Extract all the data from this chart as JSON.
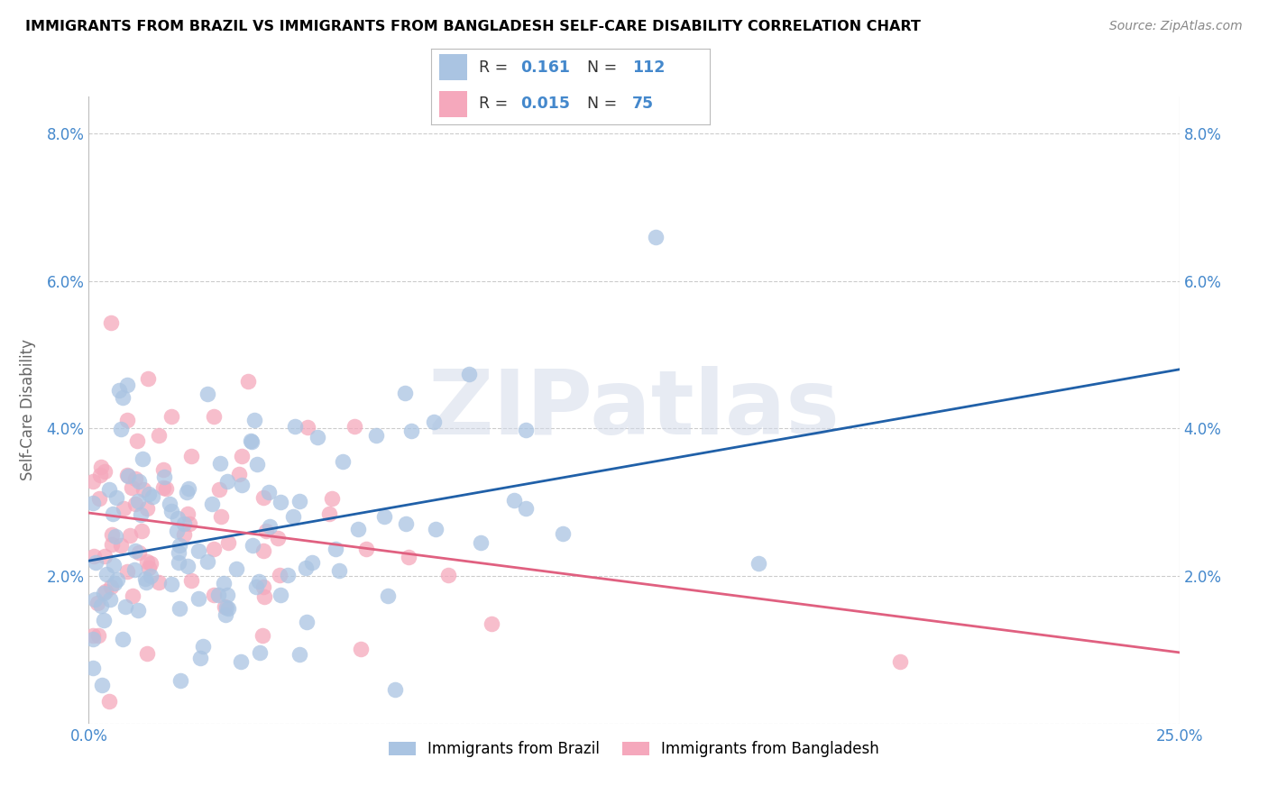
{
  "title": "IMMIGRANTS FROM BRAZIL VS IMMIGRANTS FROM BANGLADESH SELF-CARE DISABILITY CORRELATION CHART",
  "source": "Source: ZipAtlas.com",
  "ylabel": "Self-Care Disability",
  "brazil_color": "#aac4e2",
  "bangladesh_color": "#f5a8bc",
  "brazil_line_color": "#2060a8",
  "bangladesh_line_color": "#e06080",
  "brazil_R": 0.161,
  "brazil_N": 112,
  "bangladesh_R": 0.015,
  "bangladesh_N": 75,
  "watermark": "ZIPatlas",
  "grid_color": "#cccccc",
  "tick_color": "#4488cc",
  "brazil_label": "Immigrants from Brazil",
  "bangladesh_label": "Immigrants from Bangladesh"
}
